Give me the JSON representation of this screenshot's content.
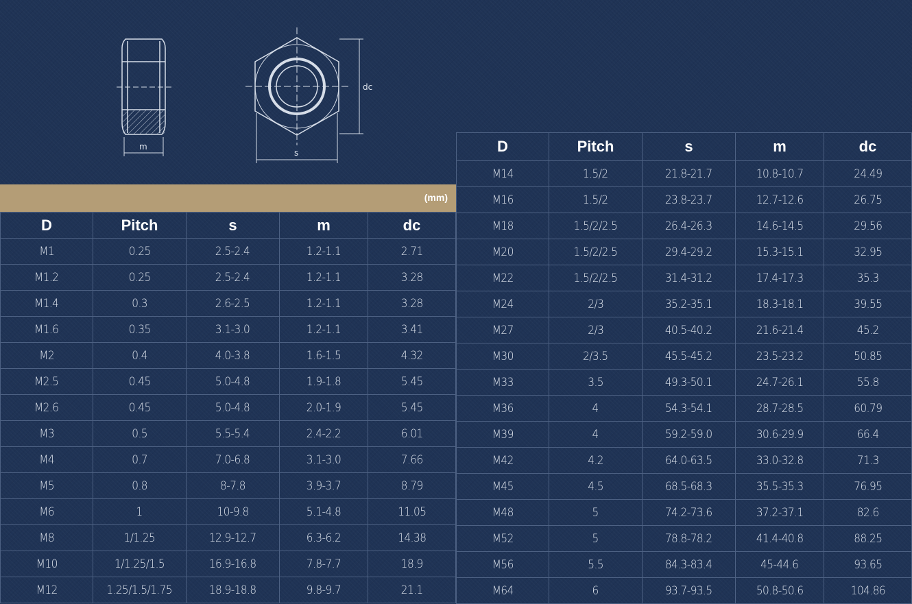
{
  "diagram": {
    "label_m": "m",
    "label_s": "s",
    "label_dc": "dc"
  },
  "unit": "(mm)",
  "columns": [
    "D",
    "Pitch",
    "s",
    "m",
    "dc"
  ],
  "left_rows": [
    [
      "M1",
      "0.25",
      "2.5-2.4",
      "1.2-1.1",
      "2.71"
    ],
    [
      "M1.2",
      "0.25",
      "2.5-2.4",
      "1.2-1.1",
      "3.28"
    ],
    [
      "M1.4",
      "0.3",
      "2.6-2.5",
      "1.2-1.1",
      "3.28"
    ],
    [
      "M1.6",
      "0.35",
      "3.1-3.0",
      "1.2-1.1",
      "3.41"
    ],
    [
      "M2",
      "0.4",
      "4.0-3.8",
      "1.6-1.5",
      "4.32"
    ],
    [
      "M2.5",
      "0.45",
      "5.0-4.8",
      "1.9-1.8",
      "5.45"
    ],
    [
      "M2.6",
      "0.45",
      "5.0-4.8",
      "2.0-1.9",
      "5.45"
    ],
    [
      "M3",
      "0.5",
      "5.5-5.4",
      "2.4-2.2",
      "6.01"
    ],
    [
      "M4",
      "0.7",
      "7.0-6.8",
      "3.1-3.0",
      "7.66"
    ],
    [
      "M5",
      "0.8",
      "8-7.8",
      "3.9-3.7",
      "8.79"
    ],
    [
      "M6",
      "1",
      "10-9.8",
      "5.1-4.8",
      "11.05"
    ],
    [
      "M8",
      "1/1.25",
      "12.9-12.7",
      "6.3-6.2",
      "14.38"
    ],
    [
      "M10",
      "1/1.25/1.5",
      "16.9-16.8",
      "7.8-7.7",
      "18.9"
    ],
    [
      "M12",
      "1.25/1.5/1.75",
      "18.9-18.8",
      "9.8-9.7",
      "21.1"
    ]
  ],
  "right_rows": [
    [
      "M14",
      "1.5/2",
      "21.8-21.7",
      "10.8-10.7",
      "24.49"
    ],
    [
      "M16",
      "1.5/2",
      "23.8-23.7",
      "12.7-12.6",
      "26.75"
    ],
    [
      "M18",
      "1.5/2/2.5",
      "26.4-26.3",
      "14.6-14.5",
      "29.56"
    ],
    [
      "M20",
      "1.5/2/2.5",
      "29.4-29.2",
      "15.3-15.1",
      "32.95"
    ],
    [
      "M22",
      "1.5/2/2.5",
      "31.4-31.2",
      "17.4-17.3",
      "35.3"
    ],
    [
      "M24",
      "2/3",
      "35.2-35.1",
      "18.3-18.1",
      "39.55"
    ],
    [
      "M27",
      "2/3",
      "40.5-40.2",
      "21.6-21.4",
      "45.2"
    ],
    [
      "M30",
      "2/3.5",
      "45.5-45.2",
      "23.5-23.2",
      "50.85"
    ],
    [
      "M33",
      "3.5",
      "49.3-50.1",
      "24.7-26.1",
      "55.8"
    ],
    [
      "M36",
      "4",
      "54.3-54.1",
      "28.7-28.5",
      "60.79"
    ],
    [
      "M39",
      "4",
      "59.2-59.0",
      "30.6-29.9",
      "66.4"
    ],
    [
      "M42",
      "4.2",
      "64.0-63.5",
      "33.0-32.8",
      "71.3"
    ],
    [
      "M45",
      "4.5",
      "68.5-68.3",
      "35.5-35.3",
      "76.95"
    ],
    [
      "M48",
      "5",
      "74.2-73.6",
      "37.2-37.1",
      "82.6"
    ],
    [
      "M52",
      "5",
      "78.8-78.2",
      "41.4-40.8",
      "88.25"
    ],
    [
      "M56",
      "5.5",
      "84.3-83.4",
      "45-44.6",
      "93.65"
    ],
    [
      "M64",
      "6",
      "93.7-93.5",
      "50.8-50.6",
      "104.86"
    ]
  ]
}
